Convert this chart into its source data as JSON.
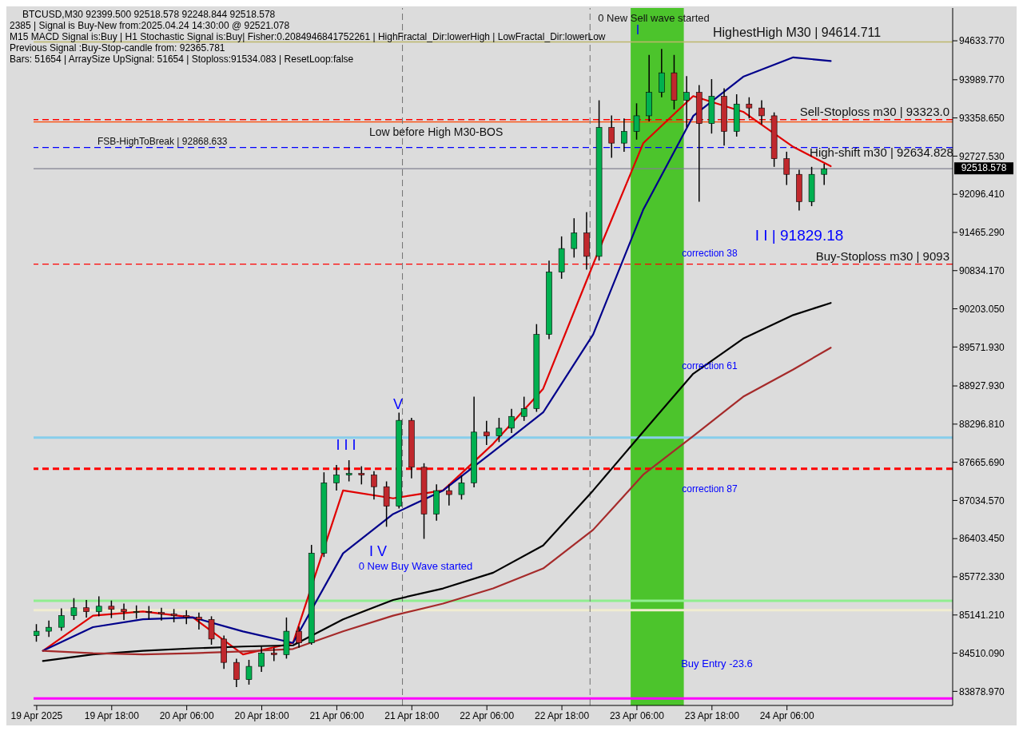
{
  "chart_data": {
    "type": "candlestick",
    "title": "BTCUSD,M30  92399.500 92518.578 92248.844 92518.578",
    "annotations": [
      "2385 | Signal is Buy-New from:2025.04.24 14:30:00 @ 92521.078",
      "M15 MACD Signal is:Buy | H1 Stochastic Signal is:Buy| Fisher:0.2084946841752261 | HighFractal_Dir:lowerHigh | LowFractal_Dir:lowerLow",
      "Previous Signal :Buy-Stop-candle from: 92365.781",
      "Bars: 51654 | ArraySize UpSignal: 51654 | Stoploss:91534.083 | ResetLoop:false",
      "V",
      "I I I",
      "I V",
      "0 New Buy Wave started",
      "I",
      "0 New Sell wave started",
      "I I | 91829.18",
      "High-shift m30 | 92634.828",
      "correction 38",
      "correction 61",
      "correction 87",
      "Buy Entry -23.6"
    ],
    "x": [
      "2025-04-19T06:00",
      "2025-04-19T08:00",
      "2025-04-19T10:00",
      "2025-04-19T12:00",
      "2025-04-19T14:00",
      "2025-04-19T16:00",
      "2025-04-19T18:00",
      "2025-04-19T20:00",
      "2025-04-19T22:00",
      "2025-04-20T00:00",
      "2025-04-20T02:00",
      "2025-04-20T04:00",
      "2025-04-20T06:00",
      "2025-04-20T08:00",
      "2025-04-20T10:00",
      "2025-04-20T12:00",
      "2025-04-20T14:00",
      "2025-04-20T16:00",
      "2025-04-20T18:00",
      "2025-04-20T20:00",
      "2025-04-20T22:00",
      "2025-04-21T00:00",
      "2025-04-21T02:00",
      "2025-04-21T04:00",
      "2025-04-21T06:00",
      "2025-04-21T08:00",
      "2025-04-21T10:00",
      "2025-04-21T12:00",
      "2025-04-21T14:00",
      "2025-04-21T16:00",
      "2025-04-21T18:00",
      "2025-04-21T20:00",
      "2025-04-21T22:00",
      "2025-04-22T00:00",
      "2025-04-22T02:00",
      "2025-04-22T04:00",
      "2025-04-22T06:00",
      "2025-04-22T08:00",
      "2025-04-22T10:00",
      "2025-04-22T12:00",
      "2025-04-22T14:00",
      "2025-04-22T16:00",
      "2025-04-22T18:00",
      "2025-04-22T20:00",
      "2025-04-22T22:00",
      "2025-04-23T00:00",
      "2025-04-23T02:00",
      "2025-04-23T04:00",
      "2025-04-23T06:00",
      "2025-04-23T08:00",
      "2025-04-23T10:00",
      "2025-04-23T12:00",
      "2025-04-23T14:00",
      "2025-04-23T16:00",
      "2025-04-23T18:00",
      "2025-04-23T20:00",
      "2025-04-23T22:00",
      "2025-04-24T00:00",
      "2025-04-24T02:00",
      "2025-04-24T04:00",
      "2025-04-24T06:00",
      "2025-04-24T08:00",
      "2025-04-24T10:00",
      "2025-04-24T12:00"
    ],
    "ohlc": [
      [
        84800,
        84990,
        84700,
        84873
      ],
      [
        84873,
        85050,
        84780,
        84938
      ],
      [
        84938,
        85250,
        84880,
        85131
      ],
      [
        85131,
        85420,
        85060,
        85261
      ],
      [
        85261,
        85390,
        85100,
        85196
      ],
      [
        85196,
        85450,
        85120,
        85286
      ],
      [
        85286,
        85380,
        85090,
        85234
      ],
      [
        85234,
        85330,
        85060,
        85196
      ],
      [
        85196,
        85300,
        85080,
        85196
      ],
      [
        85196,
        85290,
        85070,
        85183
      ],
      [
        85183,
        85260,
        85050,
        85157
      ],
      [
        85157,
        85240,
        85020,
        85131
      ],
      [
        85131,
        85220,
        84990,
        85105
      ],
      [
        85105,
        85180,
        84900,
        85067
      ],
      [
        85067,
        85120,
        84650,
        84744
      ],
      [
        84744,
        84800,
        84250,
        84357
      ],
      [
        84357,
        84420,
        83950,
        84073
      ],
      [
        84073,
        84400,
        83990,
        84292
      ],
      [
        84292,
        84620,
        84200,
        84512
      ],
      [
        84512,
        84600,
        84380,
        84486
      ],
      [
        84486,
        85100,
        84420,
        84873
      ],
      [
        84873,
        84950,
        84600,
        84680
      ],
      [
        84680,
        86300,
        84650,
        86164
      ],
      [
        86164,
        87500,
        86100,
        87326
      ],
      [
        87326,
        87620,
        87200,
        87455
      ],
      [
        87455,
        87700,
        87350,
        87481
      ],
      [
        87481,
        87600,
        87300,
        87455
      ],
      [
        87455,
        87520,
        87050,
        87262
      ],
      [
        87262,
        87350,
        86600,
        86939
      ],
      [
        86939,
        88488,
        86900,
        88359
      ],
      [
        88359,
        88400,
        87400,
        87584
      ],
      [
        87584,
        87650,
        86400,
        86810
      ],
      [
        86810,
        87300,
        86700,
        87197
      ],
      [
        87197,
        87300,
        86950,
        87132
      ],
      [
        87132,
        87450,
        87050,
        87326
      ],
      [
        87326,
        88750,
        87250,
        88165
      ],
      [
        88165,
        88350,
        87950,
        88101
      ],
      [
        88101,
        88400,
        88000,
        88230
      ],
      [
        88230,
        88550,
        88150,
        88424
      ],
      [
        88424,
        88750,
        88350,
        88553
      ],
      [
        88553,
        89950,
        88500,
        89779
      ],
      [
        89779,
        91000,
        89700,
        90812
      ],
      [
        90812,
        91400,
        90700,
        91199
      ],
      [
        91199,
        91700,
        91050,
        91457
      ],
      [
        91457,
        91800,
        90850,
        91070
      ],
      [
        91070,
        93650,
        91000,
        93201
      ],
      [
        93201,
        93400,
        92700,
        92942
      ],
      [
        92942,
        93350,
        92800,
        93136
      ],
      [
        93136,
        93600,
        93000,
        93394
      ],
      [
        93394,
        94400,
        93300,
        93782
      ],
      [
        93782,
        94500,
        93700,
        94104
      ],
      [
        94104,
        94400,
        93500,
        93652
      ],
      [
        93652,
        94050,
        93200,
        93781
      ],
      [
        93781,
        93900,
        91974,
        93265
      ],
      [
        93265,
        94000,
        93100,
        93717
      ],
      [
        93717,
        93850,
        92900,
        93136
      ],
      [
        93136,
        93750,
        93050,
        93588
      ],
      [
        93588,
        93700,
        93350,
        93523
      ],
      [
        93523,
        93650,
        93250,
        93394
      ],
      [
        93394,
        93450,
        92550,
        92684
      ],
      [
        92684,
        92800,
        92250,
        92426
      ],
      [
        92426,
        92500,
        91829,
        91974
      ],
      [
        91974,
        92550,
        91900,
        92426
      ],
      [
        92426,
        92600,
        92249,
        92518
      ]
    ],
    "series": [
      {
        "type": "line",
        "color": "#e00000",
        "x": [
          "2025-04-19T07:00",
          "2025-04-19T15:00",
          "2025-04-19T23:00",
          "2025-04-20T07:00",
          "2025-04-20T15:00",
          "2025-04-20T23:00",
          "2025-04-21T07:00",
          "2025-04-21T15:00",
          "2025-04-21T23:00",
          "2025-04-22T07:00",
          "2025-04-22T15:00",
          "2025-04-22T23:00",
          "2025-04-23T07:00",
          "2025-04-23T15:00",
          "2025-04-23T23:00",
          "2025-04-24T07:00",
          "2025-04-24T13:00"
        ],
        "values": [
          84550,
          85130,
          85200,
          85100,
          84490,
          84680,
          87200,
          87070,
          87200,
          87970,
          88880,
          90940,
          92940,
          93720,
          93460,
          92880,
          92560
        ]
      },
      {
        "type": "line",
        "color": "#00008b",
        "x": [
          "2025-04-19T07:00",
          "2025-04-19T15:00",
          "2025-04-19T23:00",
          "2025-04-20T07:00",
          "2025-04-20T15:00",
          "2025-04-20T23:00",
          "2025-04-21T07:00",
          "2025-04-21T15:00",
          "2025-04-21T23:00",
          "2025-04-22T07:00",
          "2025-04-22T15:00",
          "2025-04-22T23:00",
          "2025-04-23T07:00",
          "2025-04-23T15:00",
          "2025-04-23T23:00",
          "2025-04-24T07:00",
          "2025-04-24T13:00"
        ],
        "values": [
          84550,
          84940,
          85070,
          85100,
          84870,
          84680,
          86160,
          86810,
          87200,
          87840,
          88490,
          89780,
          91840,
          93390,
          94040,
          94360,
          94300
        ]
      },
      {
        "type": "line",
        "color": "#000000",
        "x": [
          "2025-04-19T07:00",
          "2025-04-19T15:00",
          "2025-04-19T23:00",
          "2025-04-20T07:00",
          "2025-04-20T15:00",
          "2025-04-20T23:00",
          "2025-04-21T07:00",
          "2025-04-21T15:00",
          "2025-04-21T23:00",
          "2025-04-22T07:00",
          "2025-04-22T15:00",
          "2025-04-22T23:00",
          "2025-04-23T07:00",
          "2025-04-23T15:00",
          "2025-04-23T23:00",
          "2025-04-24T07:00",
          "2025-04-24T13:00"
        ],
        "values": [
          84380,
          84490,
          84550,
          84590,
          84620,
          84640,
          85070,
          85390,
          85580,
          85840,
          86290,
          87200,
          88170,
          89130,
          89710,
          90100,
          90300
        ]
      },
      {
        "type": "line",
        "color": "#a52a2a",
        "x": [
          "2025-04-19T07:00",
          "2025-04-19T15:00",
          "2025-04-19T23:00",
          "2025-04-20T07:00",
          "2025-04-20T15:00",
          "2025-04-20T23:00",
          "2025-04-21T07:00",
          "2025-04-21T15:00",
          "2025-04-21T23:00",
          "2025-04-22T07:00",
          "2025-04-22T15:00",
          "2025-04-22T23:00",
          "2025-04-23T07:00",
          "2025-04-23T15:00",
          "2025-04-23T23:00",
          "2025-04-24T07:00",
          "2025-04-24T13:00"
        ],
        "values": [
          84550,
          84510,
          84490,
          84510,
          84540,
          84580,
          84870,
          85130,
          85330,
          85580,
          85910,
          86550,
          87460,
          88100,
          88750,
          89200,
          89560
        ]
      }
    ],
    "xlim": [
      "2025-04-19T05:30",
      "2025-04-25T08:30"
    ],
    "xticks": [
      {
        "value": "2025-04-19T06:00",
        "label": "19 Apr 2025"
      },
      {
        "value": "2025-04-19T18:00",
        "label": "19 Apr 18:00"
      },
      {
        "value": "2025-04-20T06:00",
        "label": "20 Apr 06:00"
      },
      {
        "value": "2025-04-20T18:00",
        "label": "20 Apr 18:00"
      },
      {
        "value": "2025-04-21T06:00",
        "label": "21 Apr 06:00"
      },
      {
        "value": "2025-04-21T18:00",
        "label": "21 Apr 18:00"
      },
      {
        "value": "2025-04-22T06:00",
        "label": "22 Apr 06:00"
      },
      {
        "value": "2025-04-22T18:00",
        "label": "22 Apr 18:00"
      },
      {
        "value": "2025-04-23T06:00",
        "label": "23 Apr 06:00"
      },
      {
        "value": "2025-04-23T18:00",
        "label": "23 Apr 18:00"
      },
      {
        "value": "2025-04-24T06:00",
        "label": "24 Apr 06:00"
      }
    ],
    "ylim": [
      83646,
      95176
    ],
    "yticks": [
      {
        "value": 83878.97,
        "label": "83878.970"
      },
      {
        "value": 84510.09,
        "label": "84510.090"
      },
      {
        "value": 85141.21,
        "label": "85141.210"
      },
      {
        "value": 85772.33,
        "label": "85772.330"
      },
      {
        "value": 86403.45,
        "label": "86403.450"
      },
      {
        "value": 87034.57,
        "label": "87034.570"
      },
      {
        "value": 87665.69,
        "label": "87665.690"
      },
      {
        "value": 88296.81,
        "label": "88296.810"
      },
      {
        "value": 88927.93,
        "label": "88927.930"
      },
      {
        "value": 89571.93,
        "label": "89571.930"
      },
      {
        "value": 90203.05,
        "label": "90203.050"
      },
      {
        "value": 90834.17,
        "label": "90834.170"
      },
      {
        "value": 91465.29,
        "label": "91465.290"
      },
      {
        "value": 92096.41,
        "label": "92096.410"
      },
      {
        "value": 92727.53,
        "label": "92727.530"
      },
      {
        "value": 93358.65,
        "label": "93358.650"
      },
      {
        "value": 93989.77,
        "label": "93989.770"
      },
      {
        "value": 94633.77,
        "label": "94633.770"
      }
    ],
    "ref_lines": [
      {
        "axis": "y",
        "value": 92868.633,
        "label": "FSB-HighToBreak | 92868.633",
        "color": "#0000ff",
        "line_style": "dashed"
      },
      {
        "axis": "y",
        "value": 92518.578,
        "label": "92518.578",
        "color": "#808090",
        "line_style": "solid"
      },
      {
        "axis": "y",
        "value": 94614.711,
        "label": "HighestHigh   M30 | 94614.711",
        "color": "#bdb76b",
        "line_style": "solid"
      },
      {
        "axis": "y",
        "value": 93330,
        "label": "Sell-Stoploss m30 | 93323.0",
        "color": "#ff0000",
        "line_style": "dashed"
      },
      {
        "axis": "y",
        "value": 93291,
        "label": "Low before High   M30-BOS",
        "color": "#ff4500",
        "line_style": "solid"
      },
      {
        "axis": "y",
        "value": 90941,
        "label": "Buy-Stoploss m30 | 9093",
        "color": "#ff0000",
        "line_style": "dashed"
      },
      {
        "axis": "y",
        "value": 88075,
        "color": "#87ceeb",
        "line_style": "solid"
      },
      {
        "axis": "y",
        "value": 87558,
        "color": "#ff0000",
        "line_style": "dashed"
      },
      {
        "axis": "y",
        "value": 85376,
        "color": "#90ee90",
        "line_style": "solid"
      },
      {
        "axis": "y",
        "value": 85221,
        "color": "#f0ecd0",
        "line_style": "solid"
      },
      {
        "axis": "y",
        "value": 83763,
        "color": "#ff00ff",
        "line_style": "solid"
      },
      {
        "axis": "x",
        "value": "2025-04-21T16:30",
        "color": "#707070",
        "line_style": "dashed"
      },
      {
        "axis": "x",
        "value": "2025-04-22T22:30",
        "color": "#707070",
        "line_style": "dashed"
      }
    ],
    "bands": [
      {
        "axis": "x",
        "from": "2025-04-23T05:00",
        "to": "2025-04-23T13:30",
        "color": "#4cc42c"
      }
    ]
  }
}
